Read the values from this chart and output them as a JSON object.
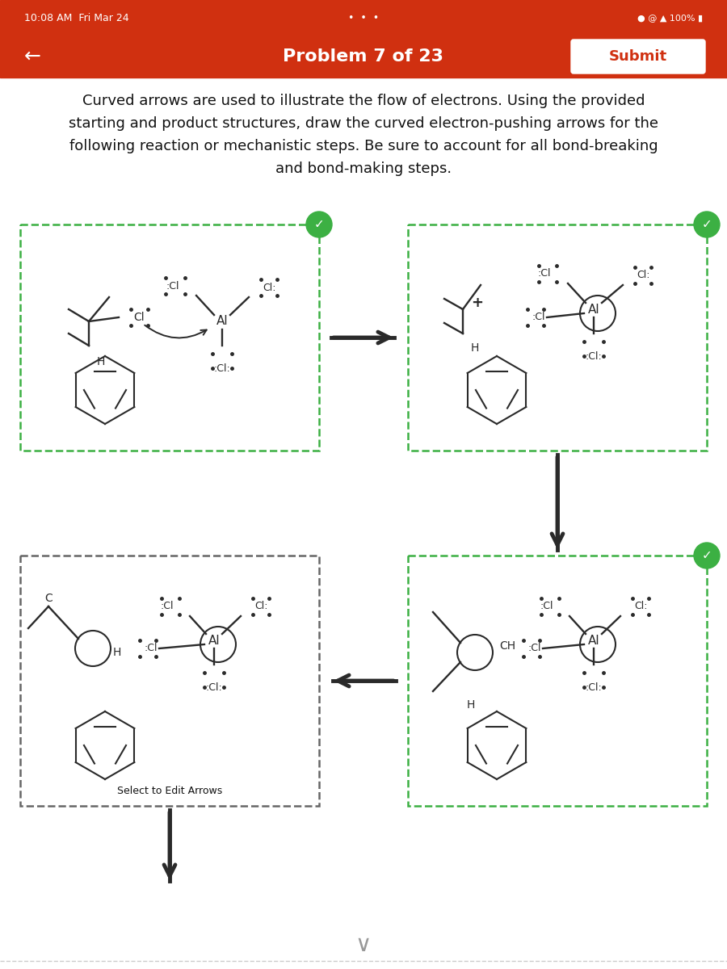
{
  "status_bar_color": "#D03010",
  "title_bar_color": "#D03010",
  "bg_color": "#ffffff",
  "status_text": "10:08 AM  Fri Mar 24",
  "header_title": "Problem 7 of 23",
  "submit_btn": "Submit",
  "description_lines": [
    "Curved arrows are used to illustrate the flow of electrons. Using the provided",
    "starting and product structures, draw the curved electron-pushing arrows for the",
    "following reaction or mechanistic steps. Be sure to account for all bond-breaking",
    "and bond-making steps."
  ],
  "green_color": "#3CB043",
  "dark_border_color": "#555555",
  "molecule_color": "#2a2a2a",
  "arrow_color": "#2a2a2a",
  "select_edit_text": "Select to Edit Arrows",
  "font_color": "#111111"
}
